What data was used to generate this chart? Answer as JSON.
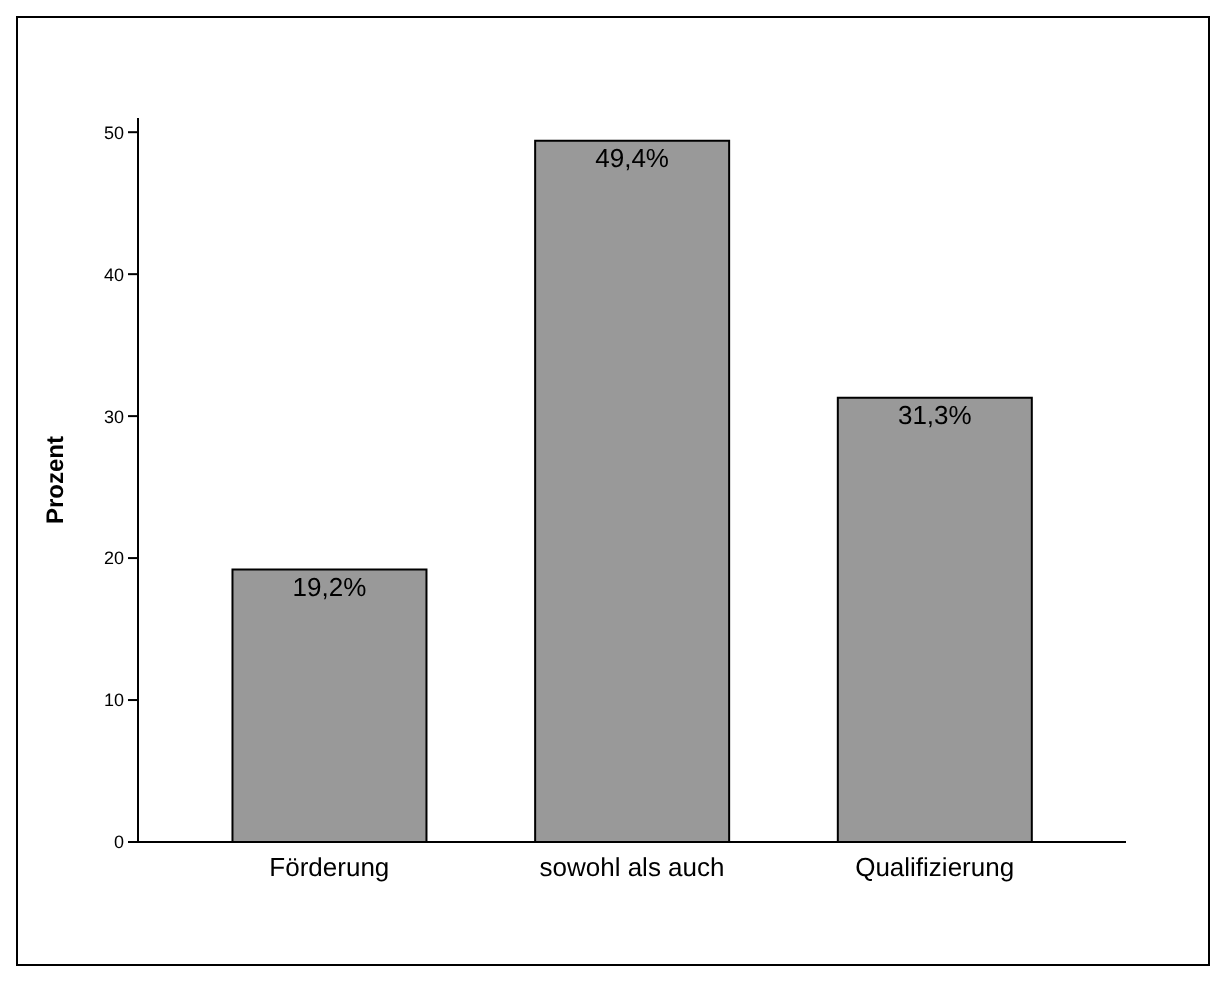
{
  "chart_data": {
    "type": "bar",
    "ylabel": "Prozent",
    "categories": [
      "Förderung",
      "sowohl als auch",
      "Qualifizierung"
    ],
    "values": [
      19.2,
      49.4,
      31.3
    ],
    "value_labels": [
      "19,2%",
      "49,4%",
      "31,3%"
    ],
    "color": "#999999",
    "ylim": [
      0,
      51
    ],
    "yticks": [
      0,
      10,
      20,
      30,
      40,
      50
    ],
    "grid": false,
    "legend": false
  }
}
